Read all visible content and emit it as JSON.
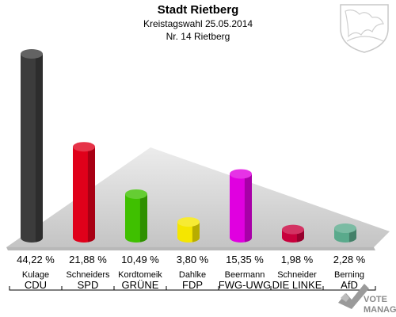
{
  "header": {
    "title": "Stadt Rietberg",
    "subtitle": "Kreistagswahl 25.05.2014",
    "district": "Nr. 14 Rietberg"
  },
  "watermark": {
    "line1": "VOTE",
    "line2": "MANAGER"
  },
  "chart_data": {
    "type": "bar",
    "title": "Stadt Rietberg",
    "ylim": [
      0,
      44.22
    ],
    "bars": [
      {
        "candidate": "Kulage",
        "party": "CDU",
        "value": 44.22,
        "label": "44,22 %",
        "color": "#3c3c3c"
      },
      {
        "candidate": "Schneiders",
        "party": "SPD",
        "value": 21.88,
        "label": "21,88 %",
        "color": "#e0001a"
      },
      {
        "candidate": "Kordtomeik",
        "party": "GRÜNE",
        "value": 10.49,
        "label": "10,49 %",
        "color": "#3fc000"
      },
      {
        "candidate": "Dahlke",
        "party": "FDP",
        "value": 3.8,
        "label": "3,80 %",
        "color": "#f5e600"
      },
      {
        "candidate": "Beermann",
        "party": "FWG-UWG",
        "value": 15.35,
        "label": "15,35 %",
        "color": "#e000e0"
      },
      {
        "candidate": "Schneider",
        "party": "DIE LINKE",
        "value": 1.98,
        "label": "1,98 %",
        "color": "#c8003c"
      },
      {
        "candidate": "Berning",
        "party": "AfD",
        "value": 2.28,
        "label": "2,28 %",
        "color": "#5aaa8c"
      }
    ]
  }
}
